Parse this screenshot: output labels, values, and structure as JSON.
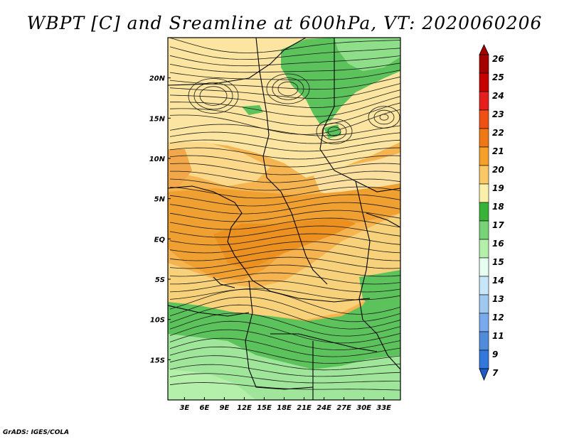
{
  "title": "WBPT [C] and Sreamline at 600hPa, VT: 2020060206",
  "credit": "GrADS: IGES/COLA",
  "map": {
    "lon_labels": [
      "3E",
      "6E",
      "9E",
      "12E",
      "15E",
      "18E",
      "21E",
      "24E",
      "27E",
      "30E",
      "33E"
    ],
    "lon_values": [
      3,
      6,
      9,
      12,
      15,
      18,
      21,
      24,
      27,
      30,
      33
    ],
    "lat_labels": [
      "20N",
      "15N",
      "10N",
      "5N",
      "EQ",
      "5S",
      "10S",
      "15S"
    ],
    "lat_values": [
      20,
      15,
      10,
      5,
      0,
      -5,
      -10,
      -15
    ],
    "lon_range": [
      0.5,
      35.5
    ],
    "lat_range": [
      -20,
      25
    ]
  },
  "colorbar": {
    "levels": [
      "26",
      "25",
      "24",
      "23",
      "22",
      "21",
      "20",
      "19",
      "18",
      "17",
      "16",
      "15",
      "14",
      "13",
      "12",
      "11",
      "9",
      "7"
    ],
    "colors": [
      "#a50000",
      "#c80000",
      "#e61e1e",
      "#f05014",
      "#f07814",
      "#f5a028",
      "#fac864",
      "#faf0aa",
      "#37b437",
      "#78d278",
      "#b4f0aa",
      "#e6fff0",
      "#c8e6fa",
      "#a0c8f0",
      "#78aaee",
      "#508cdc",
      "#3278dc",
      "#1e5ac8"
    ]
  }
}
